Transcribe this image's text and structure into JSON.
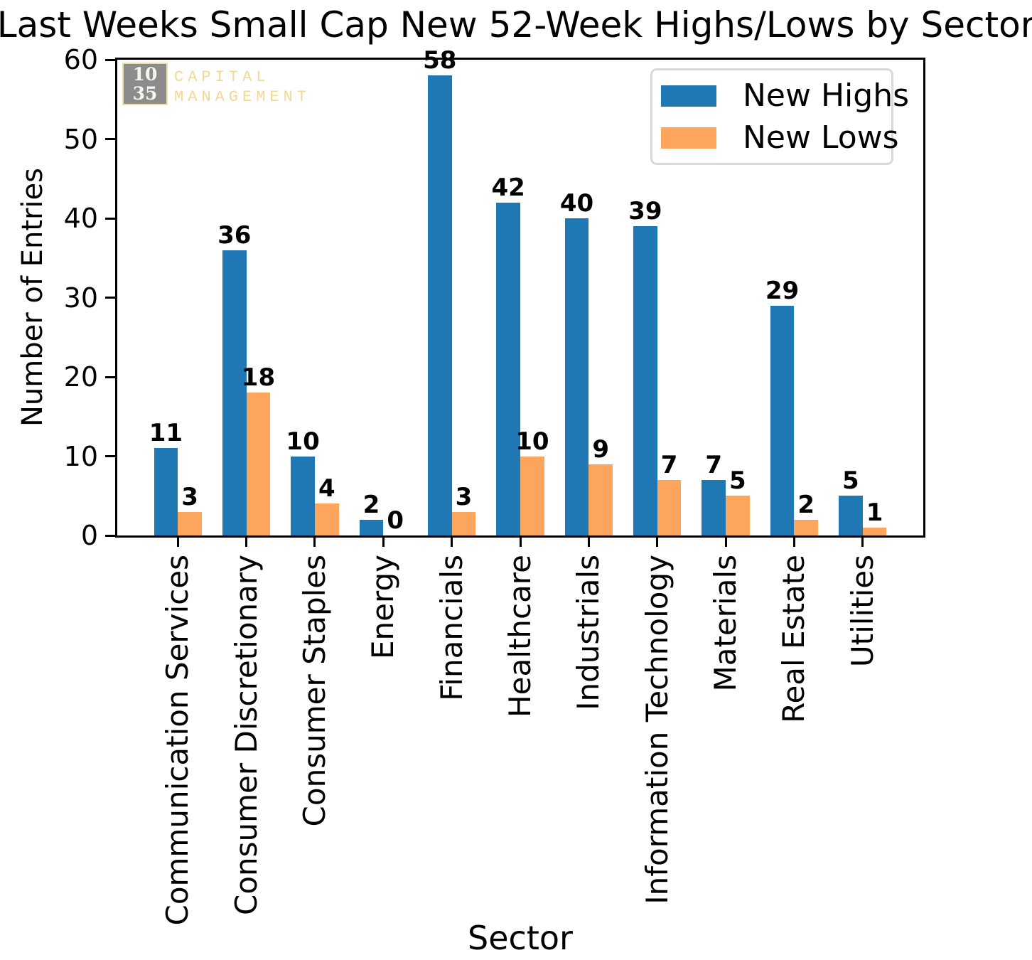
{
  "title": "Last Weeks Small Cap New 52-Week Highs/Lows by Sector",
  "logo": {
    "box_line1": "10",
    "box_line2": "35",
    "text_line1": "CAPITAL",
    "text_line2": "MANAGEMENT",
    "box_color": "#8c8c8c",
    "accent_color": "#f5d795"
  },
  "legend": {
    "position": "upper-right",
    "items": [
      {
        "label": "New Highs",
        "color": "#1f77b4"
      },
      {
        "label": "New Lows",
        "color": "#fca55c"
      }
    ]
  },
  "chart_data": {
    "type": "bar",
    "title": "Last Weeks Small Cap New 52-Week Highs/Lows by Sector",
    "xlabel": "Sector",
    "ylabel": "Number of Entries",
    "ylim": [
      0,
      60
    ],
    "yticks": [
      0,
      10,
      20,
      30,
      40,
      50,
      60
    ],
    "grid": false,
    "legend_position": "upper right",
    "bar_value_labels": true,
    "categories": [
      "Communication Services",
      "Consumer Discretionary",
      "Consumer Staples",
      "Energy",
      "Financials",
      "Healthcare",
      "Industrials",
      "Information Technology",
      "Materials",
      "Real Estate",
      "Utilities"
    ],
    "series": [
      {
        "name": "New Highs",
        "color": "#1f77b4",
        "values": [
          11,
          36,
          10,
          2,
          58,
          42,
          40,
          39,
          7,
          29,
          5
        ]
      },
      {
        "name": "New Lows",
        "color": "#fca55c",
        "values": [
          3,
          18,
          4,
          0,
          3,
          10,
          9,
          7,
          5,
          2,
          1
        ]
      }
    ]
  }
}
